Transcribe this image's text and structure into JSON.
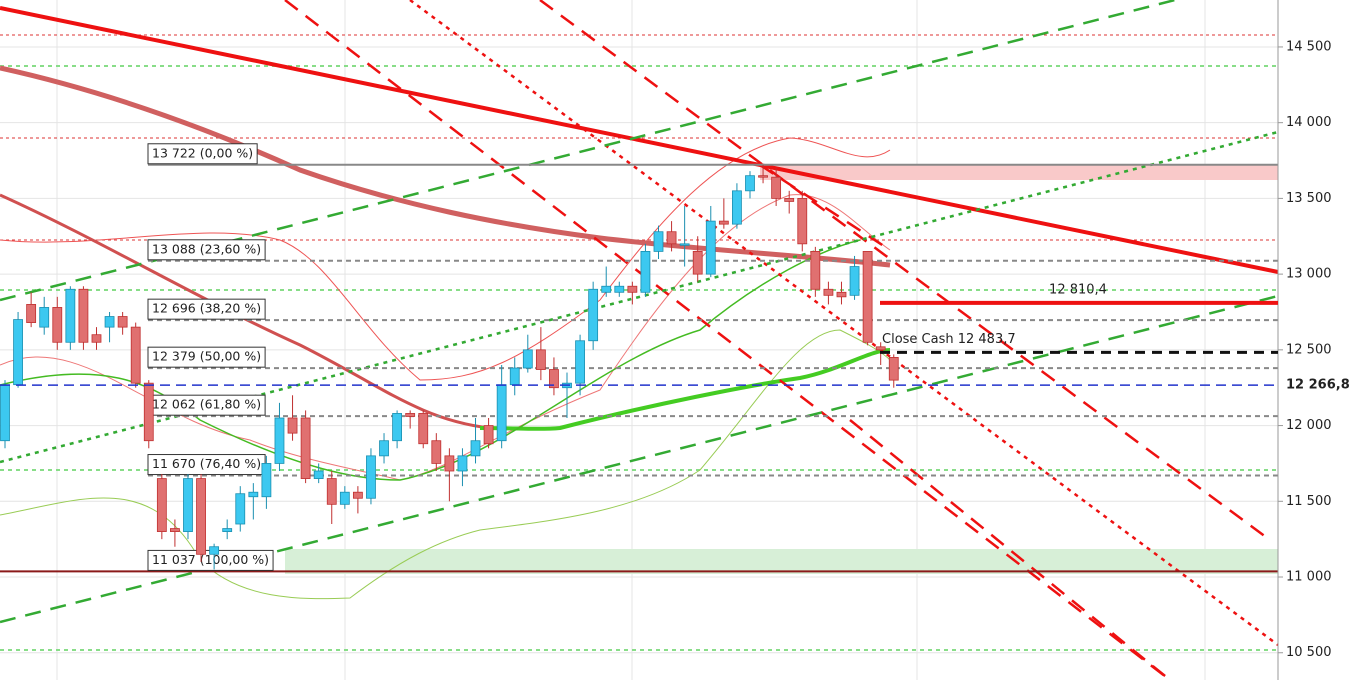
{
  "chart_data": {
    "type": "candlestick",
    "ylim": [
      10320,
      14810
    ],
    "yticks": [
      {
        "value": 10500,
        "label": "10 500"
      },
      {
        "value": 11000,
        "label": "11 000"
      },
      {
        "value": 11500,
        "label": "11 500"
      },
      {
        "value": 12000,
        "label": "12 000"
      },
      {
        "value": 12500,
        "label": "12 500"
      },
      {
        "value": 13000,
        "label": "13 000"
      },
      {
        "value": 13500,
        "label": "13 500"
      },
      {
        "value": 14000,
        "label": "14 000"
      },
      {
        "value": 14500,
        "label": "14 500"
      }
    ],
    "grid": true,
    "up_color": "#3cc8f0",
    "down_color": "#e07070",
    "open": [
      11900,
      12270,
      12800,
      12650,
      12780,
      12550,
      12900,
      12600,
      12650,
      12720,
      12650,
      12280,
      11650,
      11320,
      11300,
      11650,
      11150,
      11300,
      11350,
      11530,
      11530,
      11750,
      12050,
      12050,
      11650,
      11650,
      11480,
      11560,
      11520,
      11800,
      11900,
      12080,
      12080,
      11900,
      11800,
      11700,
      11800,
      12000,
      11900,
      12270,
      12380,
      12500,
      12370,
      12250,
      12280,
      12560,
      12880,
      12880,
      12920,
      12880,
      13150,
      13280,
      13200,
      13150,
      13000,
      13350,
      13330,
      13550,
      13650,
      13640,
      13500,
      13500,
      13150,
      12900,
      12880,
      12860,
      13150,
      12520,
      12450
    ],
    "high": [
      12300,
      12750,
      12880,
      12850,
      12850,
      12920,
      12920,
      12650,
      12750,
      12750,
      12680,
      12300,
      11680,
      11380,
      11680,
      11680,
      11220,
      11380,
      11600,
      11620,
      11800,
      12150,
      12200,
      12100,
      11750,
      11700,
      11600,
      11600,
      11850,
      11950,
      12100,
      12100,
      12100,
      11950,
      11850,
      11850,
      12050,
      12050,
      12400,
      12450,
      12600,
      12650,
      12450,
      12350,
      12600,
      12950,
      13050,
      12950,
      12950,
      13200,
      13320,
      13350,
      13450,
      13250,
      13450,
      13500,
      13600,
      13680,
      13722,
      13700,
      13550,
      13550,
      13180,
      12950,
      12950,
      13120,
      13150,
      12550,
      12470
    ],
    "low": [
      11850,
      12250,
      12650,
      12600,
      12500,
      12500,
      12500,
      12500,
      12550,
      12600,
      12250,
      11850,
      11250,
      11200,
      11250,
      11100,
      11050,
      11250,
      11300,
      11380,
      11450,
      11700,
      11900,
      11620,
      11620,
      11350,
      11450,
      11420,
      11480,
      11750,
      11850,
      11980,
      11850,
      11700,
      11500,
      11600,
      11750,
      11850,
      11850,
      12200,
      12350,
      12300,
      12200,
      12050,
      12200,
      12500,
      12850,
      12850,
      12800,
      12850,
      13100,
      13150,
      13050,
      12950,
      12980,
      13300,
      13300,
      13500,
      13600,
      13450,
      13400,
      13150,
      12850,
      12800,
      12800,
      12830,
      12530,
      12400,
      12250
    ],
    "close": [
      12270,
      12700,
      12680,
      12780,
      12550,
      12900,
      12550,
      12550,
      12720,
      12650,
      12280,
      11900,
      11300,
      11300,
      11650,
      11150,
      11200,
      11320,
      11550,
      11560,
      11750,
      12050,
      11950,
      11650,
      11700,
      11480,
      11560,
      11520,
      11800,
      11900,
      12080,
      12060,
      11880,
      11750,
      11700,
      11800,
      11900,
      11880,
      12270,
      12380,
      12500,
      12370,
      12250,
      12280,
      12560,
      12900,
      12920,
      12920,
      12880,
      13150,
      13280,
      13200,
      13200,
      13000,
      13350,
      13330,
      13550,
      13650,
      13640,
      13500,
      13480,
      13200,
      12900,
      12860,
      12850,
      13050,
      12550,
      12500,
      12300
    ],
    "fib_levels": [
      {
        "value": 13722,
        "label": "13 722 (0,00 %)"
      },
      {
        "value": 13088,
        "label": "13 088 (23,60 %)"
      },
      {
        "value": 12696,
        "label": "12 696 (38,20 %)"
      },
      {
        "value": 12379,
        "label": "12 379 (50,00 %)"
      },
      {
        "value": 12062,
        "label": "12 062 (61,80 %)"
      },
      {
        "value": 11670,
        "label": "11 670 (76,40 %)"
      },
      {
        "value": 11037,
        "label": "11 037 (100,00 %)"
      }
    ],
    "resistance": {
      "value": 12810.4,
      "label": "12 810,4"
    },
    "close_cash": {
      "value": 12483.7,
      "label": "Close Cash 12 483,7"
    },
    "last_price": {
      "value": 12266.8,
      "label": "12 266,8"
    }
  }
}
